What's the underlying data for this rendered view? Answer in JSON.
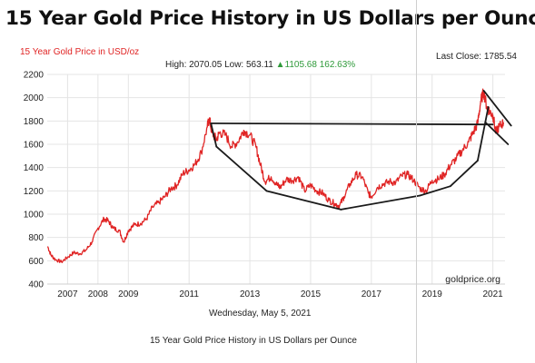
{
  "header": {
    "title": "15 Year Gold Price History in US Dollars per Ounce",
    "series_label": "15 Year Gold Price in USD/oz",
    "stats": {
      "high_label": "High:",
      "high_value": "2070.05",
      "low_label": "Low:",
      "low_value": "563.11",
      "change": "▲1105.68",
      "change_pct": "162.63%"
    },
    "last_close_label": "Last Close:",
    "last_close_value": "1785.54"
  },
  "footer": {
    "date": "Wednesday, May 5, 2021",
    "caption": "15 Year Gold Price History in US Dollars per Ounce"
  },
  "colors": {
    "series": "#e02424",
    "grid": "#e4e4e4",
    "annotation": "#1a1a1a",
    "positive": "#2f9a3a"
  },
  "chart_data": {
    "type": "line",
    "title": "15 Year Gold Price History in US Dollars per Ounce",
    "ylabel": "",
    "xlabel": "",
    "ylim": [
      400,
      2200
    ],
    "xlim": [
      2006.33,
      2021.4
    ],
    "y_ticks": [
      400,
      600,
      800,
      1000,
      1200,
      1400,
      1600,
      1800,
      2000,
      2200
    ],
    "x_ticks": [
      {
        "value": 2007,
        "label": "2007"
      },
      {
        "value": 2008,
        "label": "2008"
      },
      {
        "value": 2009,
        "label": "2009"
      },
      {
        "value": 2011,
        "label": "2011"
      },
      {
        "value": 2013,
        "label": "2013"
      },
      {
        "value": 2015,
        "label": "2015"
      },
      {
        "value": 2017,
        "label": "2017"
      },
      {
        "value": 2019,
        "label": "2019"
      },
      {
        "value": 2021,
        "label": "2021"
      }
    ],
    "grid": true,
    "watermark": "goldprice.org",
    "series": [
      {
        "color": "#e02424",
        "x": [
          2006.35,
          2006.45,
          2006.6,
          2006.8,
          2007.0,
          2007.2,
          2007.4,
          2007.6,
          2007.8,
          2008.0,
          2008.2,
          2008.35,
          2008.5,
          2008.7,
          2008.85,
          2009.0,
          2009.2,
          2009.4,
          2009.6,
          2009.8,
          2010.0,
          2010.2,
          2010.4,
          2010.6,
          2010.8,
          2011.0,
          2011.2,
          2011.4,
          2011.6,
          2011.67,
          2011.75,
          2011.9,
          2012.0,
          2012.2,
          2012.4,
          2012.6,
          2012.8,
          2013.0,
          2013.2,
          2013.35,
          2013.5,
          2013.7,
          2013.9,
          2014.0,
          2014.2,
          2014.4,
          2014.6,
          2014.8,
          2015.0,
          2015.2,
          2015.4,
          2015.6,
          2015.8,
          2015.95,
          2016.1,
          2016.3,
          2016.5,
          2016.7,
          2016.9,
          2017.0,
          2017.2,
          2017.4,
          2017.6,
          2017.8,
          2018.0,
          2018.2,
          2018.4,
          2018.6,
          2018.8,
          2019.0,
          2019.2,
          2019.4,
          2019.6,
          2019.8,
          2020.0,
          2020.2,
          2020.35,
          2020.5,
          2020.6,
          2020.7,
          2020.8,
          2020.9,
          2021.0,
          2021.1,
          2021.2,
          2021.35
        ],
        "y": [
          720,
          650,
          610,
          590,
          630,
          670,
          660,
          690,
          760,
          880,
          960,
          940,
          880,
          860,
          760,
          860,
          910,
          920,
          960,
          1060,
          1100,
          1150,
          1220,
          1250,
          1350,
          1380,
          1430,
          1530,
          1750,
          1820,
          1700,
          1640,
          1700,
          1680,
          1580,
          1620,
          1720,
          1680,
          1580,
          1420,
          1280,
          1320,
          1250,
          1230,
          1300,
          1290,
          1320,
          1200,
          1250,
          1200,
          1180,
          1120,
          1090,
          1070,
          1150,
          1260,
          1340,
          1320,
          1180,
          1150,
          1230,
          1260,
          1280,
          1270,
          1330,
          1340,
          1290,
          1220,
          1200,
          1290,
          1300,
          1340,
          1420,
          1480,
          1550,
          1620,
          1700,
          1780,
          1970,
          2050,
          1920,
          1880,
          1850,
          1700,
          1750,
          1785
        ]
      }
    ],
    "annotations": {
      "cup_handle_lines": [
        {
          "x1": 2011.72,
          "y1": 1780,
          "x2": 2021.0,
          "y2": 1770
        },
        {
          "x1": 2011.72,
          "y1": 1780,
          "x2": 2011.9,
          "y2": 1580
        },
        {
          "x1": 2011.9,
          "y1": 1580,
          "x2": 2013.55,
          "y2": 1200
        },
        {
          "x1": 2013.55,
          "y1": 1200,
          "x2": 2016.0,
          "y2": 1040
        },
        {
          "x1": 2016.0,
          "y1": 1040,
          "x2": 2018.6,
          "y2": 1160
        },
        {
          "x1": 2018.6,
          "y1": 1160,
          "x2": 2019.6,
          "y2": 1240
        },
        {
          "x1": 2019.6,
          "y1": 1240,
          "x2": 2020.5,
          "y2": 1460
        },
        {
          "x1": 2020.5,
          "y1": 1460,
          "x2": 2020.85,
          "y2": 1920
        },
        {
          "x1": 2020.7,
          "y1": 2060,
          "x2": 2021.6,
          "y2": 1760
        },
        {
          "x1": 2020.75,
          "y1": 1790,
          "x2": 2021.5,
          "y2": 1600
        }
      ]
    }
  }
}
